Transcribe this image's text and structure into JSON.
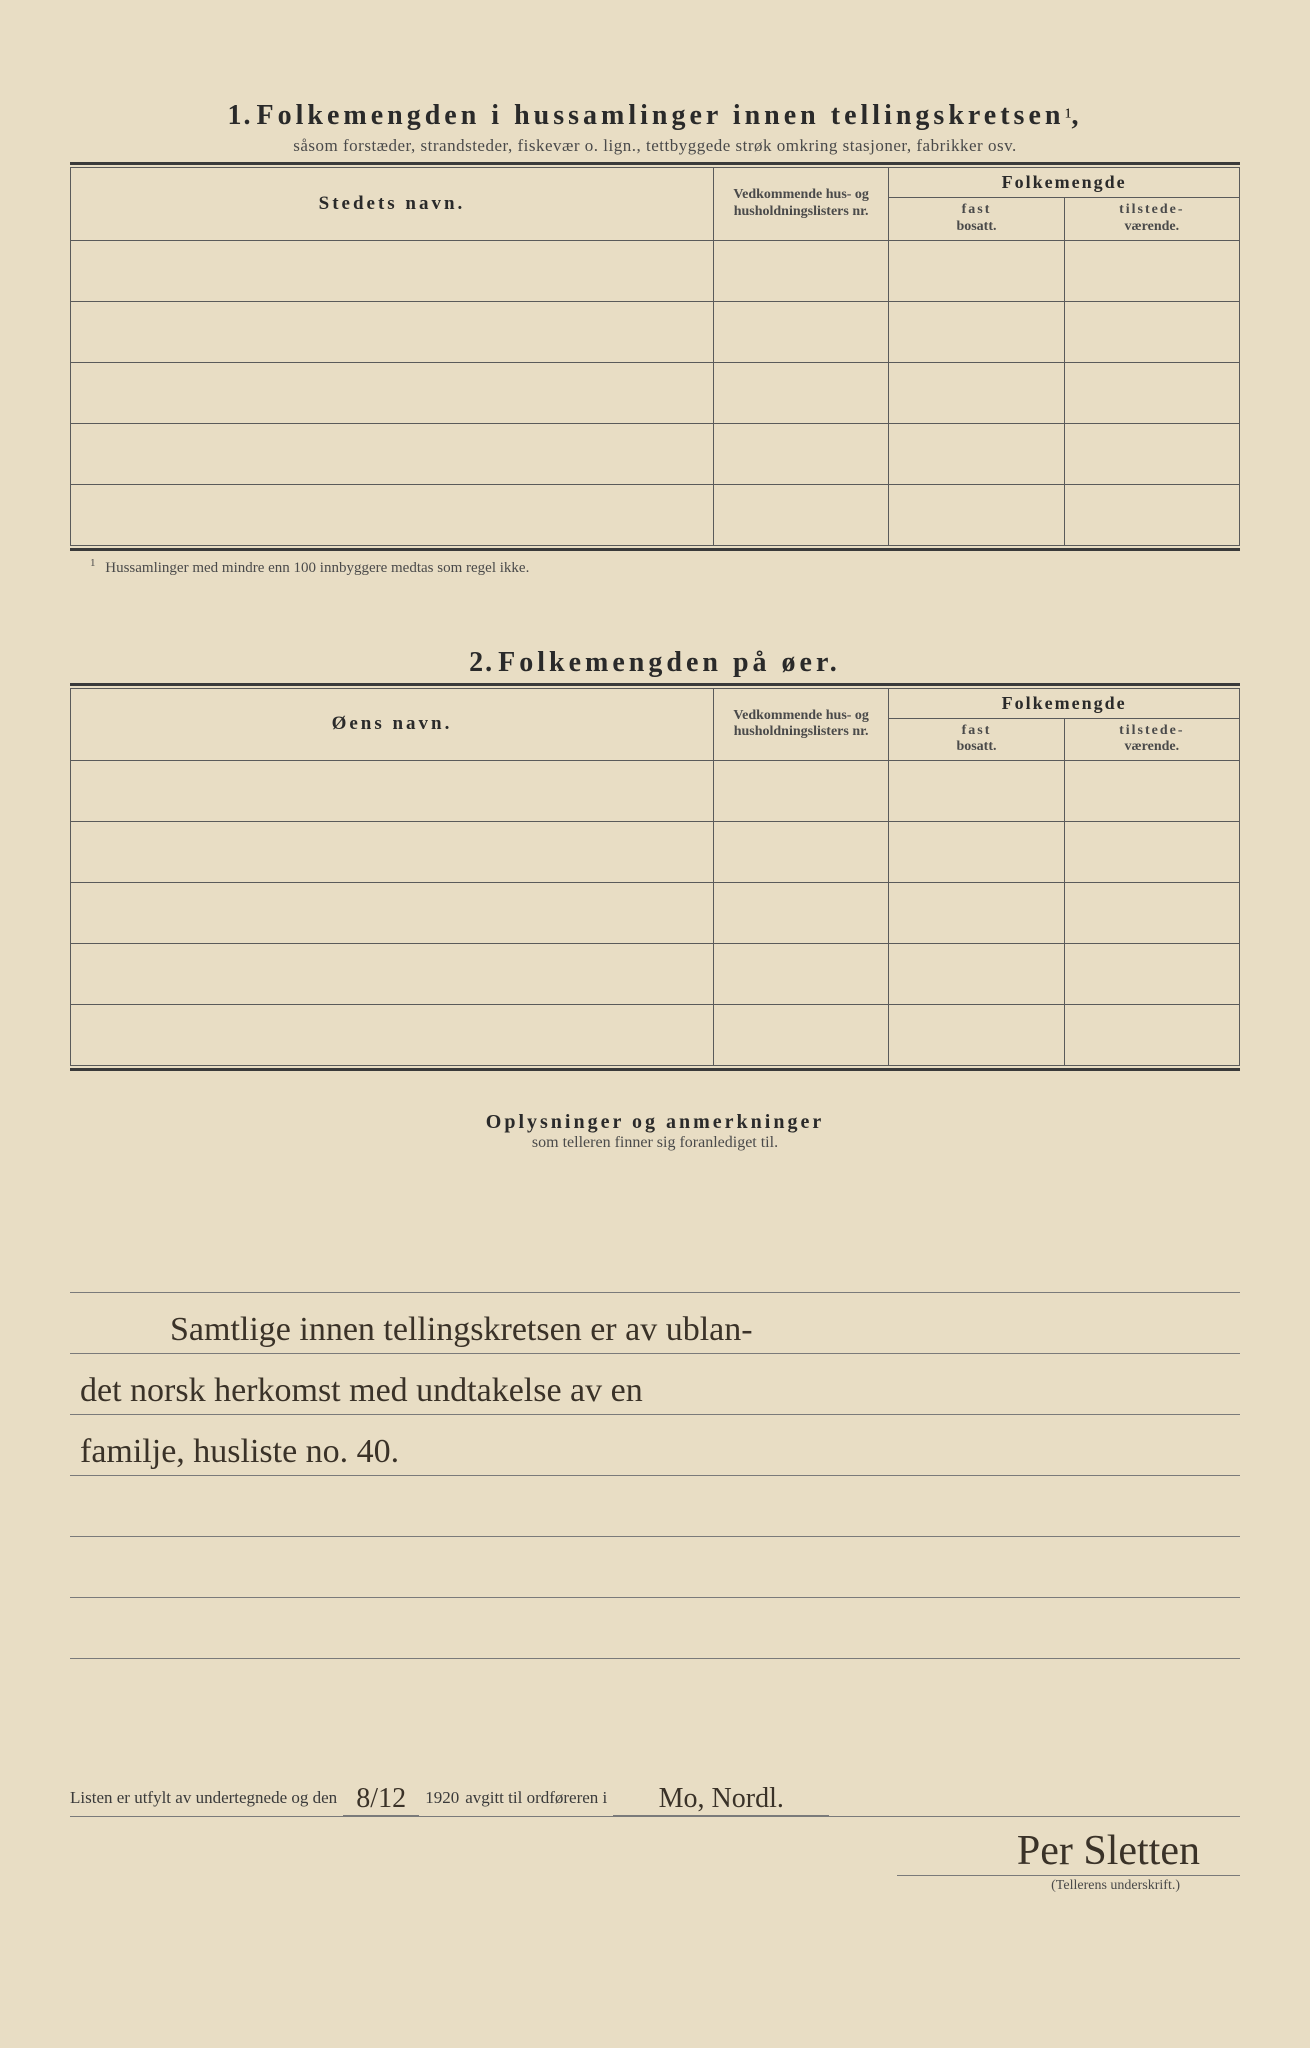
{
  "colors": {
    "paper": "#e8ddc4",
    "ink": "#2a2a2a",
    "rule": "#5a5a5a",
    "handwriting": "#3a3228",
    "background": "#3a3a3a"
  },
  "section1": {
    "number": "1.",
    "title": "Folkemengden i hussamlinger innen tellingskretsen",
    "title_suffix": ",",
    "superscript": "1",
    "subtitle": "såsom forstæder, strandsteder, fiskevær o. lign., tettbyggede strøk omkring stasjoner, fabrikker osv.",
    "columns": {
      "name": "Stedets navn.",
      "lists": "Vedkommende hus- og husholdningslisters nr.",
      "pop_header": "Folkemengde",
      "fast": "fast",
      "fast_sub": "bosatt.",
      "tilstede": "tilstede-",
      "tilstede_sub": "værende."
    },
    "row_count": 5,
    "footnote_mark": "1",
    "footnote": "Hussamlinger med mindre enn 100 innbyggere medtas som regel ikke."
  },
  "section2": {
    "number": "2.",
    "title": "Folkemengden på øer.",
    "columns": {
      "name": "Øens navn.",
      "lists": "Vedkommende hus- og husholdningslisters nr.",
      "pop_header": "Folkemengde",
      "fast": "fast",
      "fast_sub": "bosatt.",
      "tilstede": "tilstede-",
      "tilstede_sub": "værende."
    },
    "row_count": 5
  },
  "remarks": {
    "title": "Oplysninger og anmerkninger",
    "subtitle": "som telleren finner sig foranlediget til."
  },
  "handwritten_lines": [
    "Samtlige innen tellingskretsen er av ublan-",
    "det norsk herkomst med undtakelse av en",
    "familje, husliste no. 40."
  ],
  "footer": {
    "prefix": "Listen er utfylt av undertegnede og den",
    "date": "8/12",
    "year": "1920",
    "mid": "avgitt til ordføreren i",
    "place": "Mo, Nordl.",
    "signature": "Per Sletten",
    "caption": "(Tellerens underskrift.)"
  }
}
